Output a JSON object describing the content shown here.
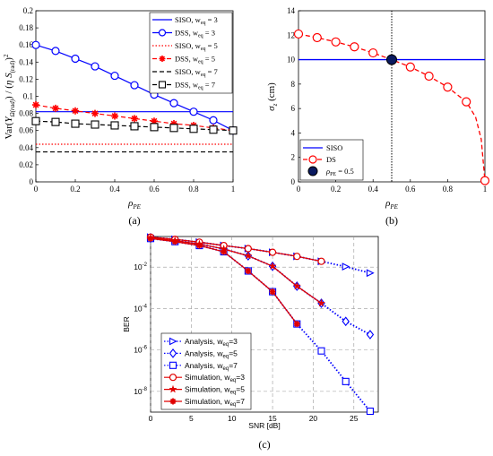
{
  "figure": {
    "captions": [
      "(a)",
      "(b)",
      "(c)"
    ]
  },
  "chart_data": [
    {
      "panel": "a",
      "type": "line",
      "xlabel": "ρ_PE",
      "ylabel": "Var(Y_Ω(rad)) / (η S_(rad))²",
      "xlim": [
        0,
        1
      ],
      "ylim": [
        0,
        0.2
      ],
      "xticks": [
        "0",
        "0.2",
        "0.4",
        "0.6",
        "0.8",
        "1"
      ],
      "yticks": [
        "0",
        "0.02",
        "0.04",
        "0.06",
        "0.08",
        "0.1",
        "0.12",
        "0.14",
        "0.16",
        "0.18",
        "0.2"
      ],
      "legend_position": "top-right",
      "series": [
        {
          "name": "SISO, w_eq = 3",
          "color": "#0000ff",
          "style": "solid",
          "marker": "none",
          "x": [
            0,
            1
          ],
          "y": [
            0.082,
            0.082
          ]
        },
        {
          "name": "DSS, w_eq = 3",
          "color": "#0000ff",
          "style": "solid",
          "marker": "circle",
          "x": [
            0,
            0.1,
            0.2,
            0.3,
            0.4,
            0.5,
            0.6,
            0.7,
            0.8,
            0.9,
            1.0
          ],
          "y": [
            0.16,
            0.153,
            0.144,
            0.135,
            0.124,
            0.113,
            0.102,
            0.092,
            0.082,
            0.072,
            0.06
          ]
        },
        {
          "name": "SISO, w_eq = 5",
          "color": "#ff0000",
          "style": "dotted",
          "marker": "none",
          "x": [
            0,
            1
          ],
          "y": [
            0.044,
            0.044
          ]
        },
        {
          "name": "DSS, w_eq = 5",
          "color": "#ff0000",
          "style": "dashed",
          "marker": "star",
          "x": [
            0,
            0.1,
            0.2,
            0.3,
            0.4,
            0.5,
            0.6,
            0.7,
            0.8,
            0.9,
            1.0
          ],
          "y": [
            0.09,
            0.086,
            0.083,
            0.08,
            0.077,
            0.074,
            0.071,
            0.068,
            0.066,
            0.063,
            0.06
          ]
        },
        {
          "name": "SISO, w_eq = 7",
          "color": "#000000",
          "style": "dashed",
          "marker": "none",
          "x": [
            0,
            1
          ],
          "y": [
            0.035,
            0.035
          ]
        },
        {
          "name": "DSS, w_eq = 7",
          "color": "#000000",
          "style": "dashed",
          "marker": "square",
          "x": [
            0,
            0.1,
            0.2,
            0.3,
            0.4,
            0.5,
            0.6,
            0.7,
            0.8,
            0.9,
            1.0
          ],
          "y": [
            0.071,
            0.07,
            0.068,
            0.067,
            0.066,
            0.065,
            0.064,
            0.063,
            0.062,
            0.061,
            0.06
          ]
        }
      ]
    },
    {
      "panel": "b",
      "type": "line",
      "xlabel": "ρ_PE",
      "ylabel": "σ_z (cm)",
      "xlim": [
        0,
        1
      ],
      "ylim": [
        0,
        14
      ],
      "xticks": [
        "0",
        "0.2",
        "0.4",
        "0.6",
        "0.8",
        "1"
      ],
      "yticks": [
        "0",
        "2",
        "4",
        "6",
        "8",
        "10",
        "12",
        "14"
      ],
      "legend_position": "bottom-left",
      "vline_x": 0.5,
      "series": [
        {
          "name": "SISO",
          "color": "#0000ff",
          "style": "solid",
          "marker": "none",
          "x": [
            0,
            1
          ],
          "y": [
            10,
            10
          ]
        },
        {
          "name": "DS",
          "color": "#ff0000",
          "style": "dashed",
          "marker": "circle",
          "x": [
            0,
            0.1,
            0.2,
            0.3,
            0.4,
            0.5,
            0.6,
            0.7,
            0.8,
            0.9,
            0.95,
            0.98,
            1.0
          ],
          "y": [
            12.1,
            11.8,
            11.45,
            11.05,
            10.55,
            10.0,
            9.4,
            8.65,
            7.75,
            6.55,
            5.3,
            3.5,
            0.1
          ]
        },
        {
          "name": "ρ_PE = 0.5",
          "color": "#0a1a60",
          "style": "none",
          "marker": "filled-circle",
          "x": [
            0.5
          ],
          "y": [
            10
          ]
        }
      ]
    },
    {
      "panel": "c",
      "type": "line",
      "xlabel": "SNR [dB]",
      "ylabel": "BER",
      "xlim": [
        0,
        28
      ],
      "yscale": "log",
      "ylim": [
        1e-09,
        0.3
      ],
      "xticks": [
        "0",
        "5",
        "10",
        "15",
        "20",
        "25"
      ],
      "yticks": [
        "10^-8",
        "10^-6",
        "10^-4",
        "10^-2"
      ],
      "grid": true,
      "legend_position": "bottom-left",
      "series": [
        {
          "name": "Analysis, w_eq=3",
          "color": "#0000ff",
          "style": "dotted",
          "marker": "triangle-right",
          "x": [
            0,
            3,
            6,
            9,
            12,
            15,
            18,
            21,
            24,
            27
          ],
          "y": [
            0.28,
            0.22,
            0.16,
            0.11,
            0.078,
            0.052,
            0.033,
            0.019,
            0.0105,
            0.0052
          ]
        },
        {
          "name": "Analysis, w_eq=5",
          "color": "#0000ff",
          "style": "dotted",
          "marker": "diamond",
          "x": [
            0,
            3,
            6,
            9,
            12,
            15,
            18,
            21,
            24,
            27
          ],
          "y": [
            0.26,
            0.19,
            0.13,
            0.075,
            0.035,
            0.011,
            0.0012,
            0.00018,
            2.4e-05,
            5.5e-06
          ]
        },
        {
          "name": "Analysis, w_eq=7",
          "color": "#0000ff",
          "style": "dotted",
          "marker": "square",
          "x": [
            0,
            3,
            6,
            9,
            12,
            15,
            18,
            21,
            24,
            27
          ],
          "y": [
            0.24,
            0.17,
            0.11,
            0.055,
            0.0065,
            0.00065,
            1.8e-05,
            9e-07,
            3e-08,
            1.1e-09
          ]
        },
        {
          "name": "Simulation, w_eq=3",
          "color": "#e00000",
          "style": "solid",
          "marker": "circle",
          "x": [
            0,
            3,
            6,
            9,
            12,
            15,
            18,
            21
          ],
          "y": [
            0.28,
            0.22,
            0.16,
            0.11,
            0.078,
            0.052,
            0.033,
            0.019
          ]
        },
        {
          "name": "Simulation, w_eq=5",
          "color": "#e00000",
          "style": "solid",
          "marker": "star5",
          "x": [
            0,
            3,
            6,
            9,
            12,
            15,
            18,
            21
          ],
          "y": [
            0.26,
            0.19,
            0.13,
            0.075,
            0.035,
            0.011,
            0.0012,
            0.00018
          ]
        },
        {
          "name": "Simulation, w_eq=7",
          "color": "#e00000",
          "style": "solid",
          "marker": "asterisk",
          "x": [
            0,
            3,
            6,
            9,
            12,
            15,
            18
          ],
          "y": [
            0.24,
            0.17,
            0.11,
            0.055,
            0.0065,
            0.00065,
            1.8e-05
          ]
        }
      ]
    }
  ]
}
